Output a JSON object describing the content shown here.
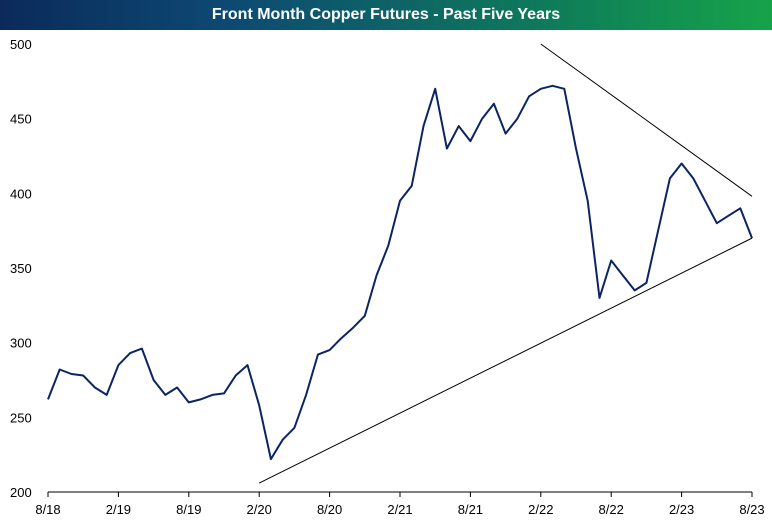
{
  "chart_data": {
    "type": "line",
    "title": "Front Month Copper Futures - Past Five Years",
    "xlabel": "",
    "ylabel": "",
    "ylim": [
      200,
      500
    ],
    "y_ticks": [
      200,
      250,
      300,
      350,
      400,
      450,
      500
    ],
    "x_ticks": [
      "8/18",
      "2/19",
      "8/19",
      "2/20",
      "8/20",
      "2/21",
      "8/21",
      "2/22",
      "8/22",
      "2/23",
      "8/23"
    ],
    "grid": false,
    "legend": "none",
    "colors": {
      "series": "#0b2462",
      "trendline": "#000000"
    },
    "series": [
      {
        "x": [
          "8/18",
          "9/18",
          "10/18",
          "11/18",
          "12/18",
          "1/19",
          "2/19",
          "3/19",
          "4/19",
          "5/19",
          "6/19",
          "7/19",
          "8/19",
          "9/19",
          "10/19",
          "11/19",
          "12/19",
          "1/20",
          "2/20",
          "3/20",
          "4/20",
          "5/20",
          "6/20",
          "7/20",
          "8/20",
          "9/20",
          "10/20",
          "11/20",
          "12/20",
          "1/21",
          "2/21",
          "3/21",
          "4/21",
          "5/21",
          "6/21",
          "7/21",
          "8/21",
          "9/21",
          "10/21",
          "11/21",
          "12/21",
          "1/22",
          "2/22",
          "3/22",
          "4/22",
          "5/22",
          "6/22",
          "7/22",
          "8/22",
          "9/22",
          "10/22",
          "11/22",
          "12/22",
          "1/23",
          "2/23",
          "3/23",
          "4/23",
          "5/23",
          "6/23",
          "7/23",
          "8/23"
        ],
        "values": [
          262,
          282,
          279,
          278,
          270,
          265,
          285,
          293,
          296,
          275,
          265,
          270,
          260,
          262,
          265,
          266,
          278,
          285,
          258,
          222,
          235,
          243,
          265,
          292,
          295,
          303,
          310,
          318,
          345,
          365,
          395,
          405,
          445,
          470,
          430,
          445,
          435,
          450,
          460,
          440,
          450,
          465,
          470,
          472,
          470,
          430,
          395,
          330,
          355,
          345,
          335,
          340,
          375,
          410,
          420,
          410,
          395,
          380,
          385,
          390,
          370
        ]
      }
    ],
    "trendlines": [
      {
        "from": [
          "2/20",
          206
        ],
        "to": [
          "8/23",
          370
        ]
      },
      {
        "from": [
          "2/22",
          500
        ],
        "to": [
          "8/23",
          398
        ]
      }
    ]
  }
}
